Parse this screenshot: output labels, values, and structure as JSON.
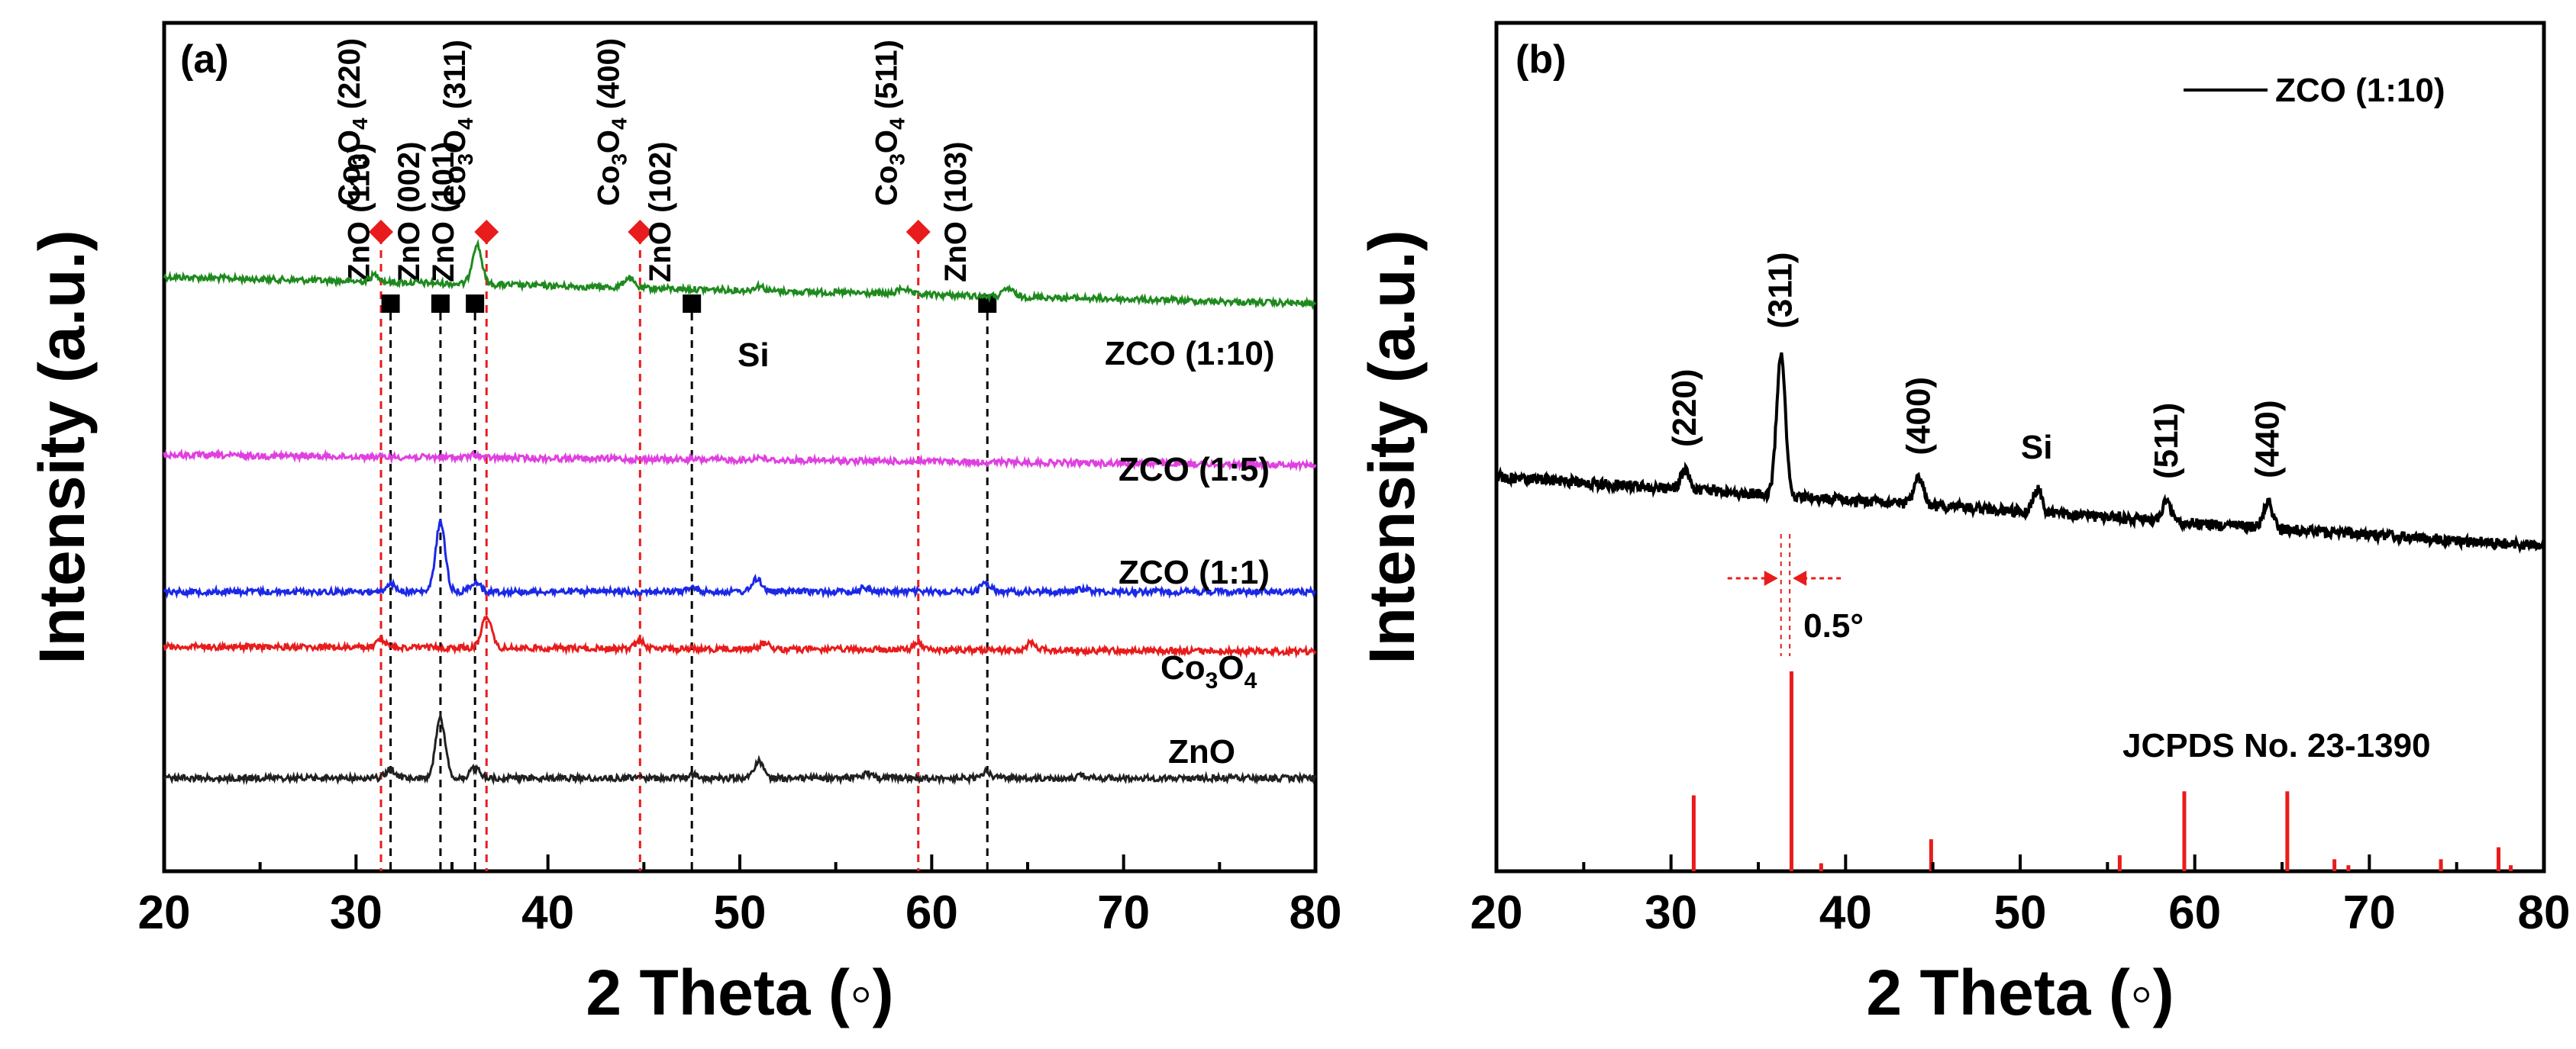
{
  "colors": {
    "zco_1_10": "#1e8a1e",
    "zco_1_5": "#e040e0",
    "zco_1_1": "#1c28e6",
    "co3o4": "#e81c1c",
    "zno": "#202020",
    "marker_red": "#e81c1c",
    "marker_black": "#000000",
    "ref_lines": "#e81c1c"
  },
  "chart_data": [
    {
      "type": "line",
      "panel_label": "(a)",
      "xlabel": "2 Theta (◦)",
      "ylabel": "Intensity (a.u.)",
      "xlim": [
        20,
        80
      ],
      "xticks": [
        "20",
        "30",
        "40",
        "50",
        "60",
        "70",
        "80"
      ],
      "grid": false,
      "series": [
        {
          "name": "ZCO (1:10)",
          "key": "zco_1_10",
          "baseline_start": 0.9,
          "baseline_end": 0.63,
          "peaks": [
            [
              31.0,
              0.07
            ],
            [
              36.3,
              0.4
            ],
            [
              44.2,
              0.1
            ],
            [
              51.0,
              0.05
            ],
            [
              58.5,
              0.06
            ],
            [
              64.0,
              0.08
            ]
          ]
        },
        {
          "name": "ZCO (1:5)",
          "key": "zco_1_5",
          "baseline_start": 0.22,
          "baseline_end": 0.12,
          "peaks": [
            [
              36.2,
              0.03
            ],
            [
              51.0,
              0.03
            ]
          ]
        },
        {
          "name": "ZCO (1:1)",
          "key": "zco_1_1",
          "baseline_start": 0.15,
          "baseline_end": 0.15,
          "peaks": [
            [
              31.8,
              0.08
            ],
            [
              34.4,
              0.7
            ],
            [
              36.2,
              0.1
            ],
            [
              47.5,
              0.04
            ],
            [
              50.9,
              0.13
            ],
            [
              56.5,
              0.04
            ],
            [
              62.8,
              0.09
            ],
            [
              67.9,
              0.03
            ]
          ]
        },
        {
          "name": "Co3O4",
          "key": "co3o4",
          "baseline_start": 0.25,
          "baseline_end": 0.2,
          "peaks": [
            [
              31.3,
              0.07
            ],
            [
              36.8,
              0.33
            ],
            [
              44.8,
              0.07
            ],
            [
              51.3,
              0.06
            ],
            [
              59.3,
              0.06
            ],
            [
              65.2,
              0.08
            ]
          ]
        },
        {
          "name": "ZnO",
          "key": "zno",
          "baseline_start": 0.0,
          "baseline_end": 0.0,
          "peaks": [
            [
              31.8,
              0.09
            ],
            [
              34.4,
              0.6
            ],
            [
              36.2,
              0.1
            ],
            [
              47.5,
              0.04
            ],
            [
              51.0,
              0.17
            ],
            [
              56.6,
              0.05
            ],
            [
              62.8,
              0.06
            ],
            [
              67.9,
              0.03
            ]
          ]
        }
      ],
      "series_labels": {
        "zco_1_10": "ZCO (1:10)",
        "zco_1_5": "ZCO (1:5)",
        "zco_1_1": "ZCO (1:1)",
        "co3o4_main": "Co",
        "co3o4_sub1": "3",
        "co3o4_mid": "O",
        "co3o4_sub2": "4",
        "zno": "ZnO",
        "si": "Si"
      },
      "reference_lines": [
        {
          "x": 31.3,
          "color_key": "marker_red",
          "marker": "diamond",
          "label_main": "Co",
          "label_sub1": "3",
          "label_mid": "O",
          "label_sub2": "4",
          "label_hkl": " (220)"
        },
        {
          "x": 31.8,
          "color_key": "marker_black",
          "marker": "square",
          "label": "ZnO (110)"
        },
        {
          "x": 34.4,
          "color_key": "marker_black",
          "marker": "square",
          "label": "ZnO (002)"
        },
        {
          "x": 36.2,
          "color_key": "marker_black",
          "marker": "square",
          "label": "ZnO (101)"
        },
        {
          "x": 36.8,
          "color_key": "marker_red",
          "marker": "diamond",
          "label_main": "Co",
          "label_sub1": "3",
          "label_mid": "O",
          "label_sub2": "4",
          "label_hkl": " (311)"
        },
        {
          "x": 44.8,
          "color_key": "marker_red",
          "marker": "diamond",
          "label_main": "Co",
          "label_sub1": "3",
          "label_mid": "O",
          "label_sub2": "4",
          "label_hkl": " (400)"
        },
        {
          "x": 47.5,
          "color_key": "marker_black",
          "marker": "square",
          "label": "ZnO (102)"
        },
        {
          "x": 59.3,
          "color_key": "marker_red",
          "marker": "diamond",
          "label_main": "Co",
          "label_sub1": "3",
          "label_mid": "O",
          "label_sub2": "4",
          "label_hkl": " (511)"
        },
        {
          "x": 62.9,
          "color_key": "marker_black",
          "marker": "square",
          "label": "ZnO (103)"
        }
      ]
    },
    {
      "type": "line",
      "panel_label": "(b)",
      "xlabel": "2 Theta (◦)",
      "ylabel": "Intensity (a.u.)",
      "xlim": [
        20,
        80
      ],
      "xticks": [
        "20",
        "30",
        "40",
        "50",
        "60",
        "70",
        "80"
      ],
      "grid": false,
      "legend": {
        "label": "ZCO (1:10)",
        "position": "top-right"
      },
      "series": [
        {
          "name": "ZCO (1:10)",
          "baseline_start": 1.0,
          "baseline_end": 0.35,
          "peaks": [
            [
              30.8,
              0.18
            ],
            [
              36.3,
              1.35
            ],
            [
              44.2,
              0.25
            ],
            [
              51.0,
              0.22
            ],
            [
              58.4,
              0.18
            ],
            [
              64.2,
              0.25
            ]
          ]
        }
      ],
      "peak_annotations": [
        {
          "x": 30.8,
          "label": "(220)",
          "rotate": true
        },
        {
          "x": 36.3,
          "label": "(311)",
          "rotate": true
        },
        {
          "x": 44.2,
          "label": "(400)",
          "rotate": true
        },
        {
          "x": 51.0,
          "label": "Si",
          "rotate": false
        },
        {
          "x": 58.4,
          "label": "(511)",
          "rotate": true
        },
        {
          "x": 64.2,
          "label": "(440)",
          "rotate": true
        }
      ],
      "shift_annotation": {
        "label": "0.5°",
        "from": 36.3,
        "to": 36.8
      },
      "reference_pattern": {
        "name": "JCPDS No. 23-1390",
        "sticks": [
          [
            31.3,
            0.38
          ],
          [
            36.9,
            1.0
          ],
          [
            38.6,
            0.04
          ],
          [
            44.9,
            0.16
          ],
          [
            55.7,
            0.08
          ],
          [
            59.4,
            0.4
          ],
          [
            65.3,
            0.4
          ],
          [
            68.0,
            0.06
          ],
          [
            68.8,
            0.03
          ],
          [
            74.1,
            0.06
          ],
          [
            77.4,
            0.12
          ],
          [
            78.1,
            0.03
          ]
        ]
      }
    }
  ],
  "labels": {
    "panel_a": "(a)",
    "panel_b": "(b)",
    "xlabel_a": "2 Theta (◦)",
    "xlabel_b": "2 Theta (◦)",
    "ylabel_a": "Intensity (a.u.)",
    "ylabel_b": "Intensity (a.u.)",
    "legend_b": "ZCO (1:10)",
    "jcpds": "JCPDS No. 23-1390",
    "shift": "0.5°",
    "si_b": "Si"
  }
}
